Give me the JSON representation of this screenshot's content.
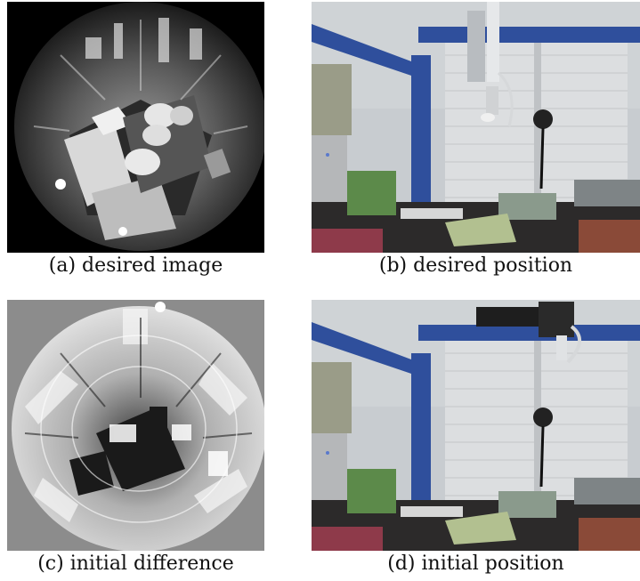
{
  "panels": [
    {
      "id": "a",
      "caption": "(a) desired image"
    },
    {
      "id": "b",
      "caption": "(b) desired position"
    },
    {
      "id": "c",
      "caption": "(c) initial difference"
    },
    {
      "id": "d",
      "caption": "(d) initial position"
    }
  ],
  "colors": {
    "fisheye_bg": "#000000",
    "difference_bg": "#8c8c8c",
    "blue_beam": "#2f4f9c",
    "wall": "#c8ccd0",
    "shutter": "#dadcde"
  }
}
